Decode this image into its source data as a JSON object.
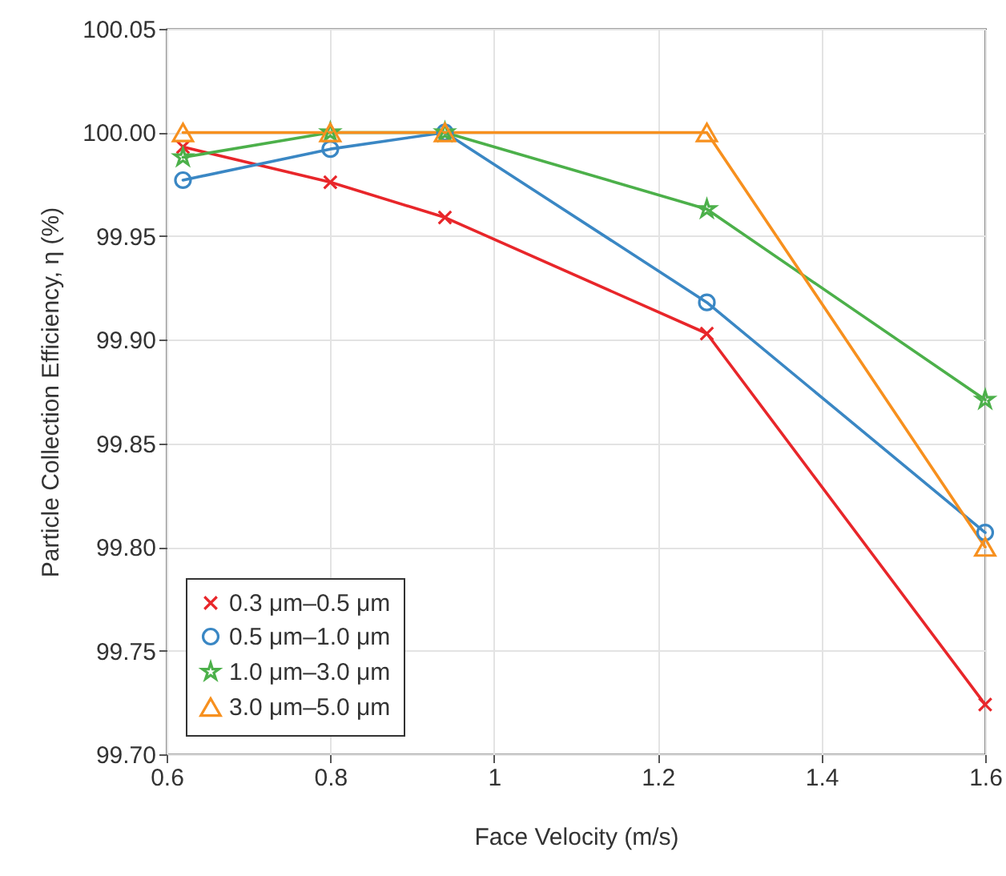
{
  "chart_data": {
    "type": "line",
    "xlabel": "Face Velocity (m/s)",
    "ylabel": "Particle Collection Efficiency, η (%)",
    "x": [
      0.62,
      0.8,
      0.94,
      1.26,
      1.6
    ],
    "series": [
      {
        "name": "0.3 μm–0.5 μm",
        "color": "#e8262a",
        "marker": "cross",
        "values": [
          99.993,
          99.976,
          99.959,
          99.903,
          99.724
        ]
      },
      {
        "name": "0.5 μm–1.0 μm",
        "color": "#3a87c4",
        "marker": "circle",
        "values": [
          99.977,
          99.992,
          100.0,
          99.918,
          99.807
        ]
      },
      {
        "name": "1.0 μm–3.0 μm",
        "color": "#4cb04a",
        "marker": "star",
        "values": [
          99.988,
          100.0,
          100.0,
          99.963,
          99.871
        ]
      },
      {
        "name": "3.0 μm–5.0 μm",
        "color": "#f7901e",
        "marker": "triangle",
        "values": [
          100.0,
          100.0,
          100.0,
          100.0,
          99.8
        ]
      }
    ],
    "xlim": [
      0.6,
      1.6
    ],
    "xticks": [
      0.6,
      0.8,
      1,
      1.2,
      1.4,
      1.6
    ],
    "ylim": [
      99.7,
      100.05
    ],
    "yticks": [
      {
        "value": 99.7,
        "label": "99.70"
      },
      {
        "value": 99.75,
        "label": "99.75"
      },
      {
        "value": 99.8,
        "label": "99.80"
      },
      {
        "value": 99.85,
        "label": "99.85"
      },
      {
        "value": 99.9,
        "label": "99.90"
      },
      {
        "value": 99.95,
        "label": "99.95"
      },
      {
        "value": 100.0,
        "label": "100.00"
      },
      {
        "value": 100.05,
        "label": "100.05"
      }
    ],
    "grid": true,
    "legend": "bottom left",
    "line_style": "solid"
  }
}
